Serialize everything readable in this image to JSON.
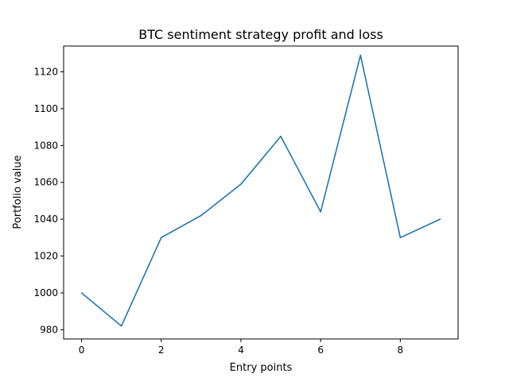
{
  "chart_data": {
    "type": "line",
    "title": "BTC sentiment strategy profit and loss",
    "xlabel": "Entry points",
    "ylabel": "Portfolio value",
    "x": [
      0,
      1,
      2,
      3,
      4,
      5,
      6,
      7,
      8,
      9
    ],
    "series": [
      {
        "color": "#1f77b4",
        "values": [
          1000,
          982,
          1030,
          1042,
          1059,
          1085,
          1044,
          1129,
          1030,
          1040
        ]
      }
    ],
    "xlim": [
      -0.45,
      9.45
    ],
    "ylim": [
      975,
      1134
    ],
    "xticks": [
      0,
      2,
      4,
      6,
      8
    ],
    "xtick_labels": [
      "0",
      "2",
      "4",
      "6",
      "8"
    ],
    "yticks": [
      980,
      1000,
      1020,
      1040,
      1060,
      1080,
      1100,
      1120
    ],
    "ytick_labels": [
      "980",
      "1000",
      "1020",
      "1040",
      "1060",
      "1080",
      "1100",
      "1120"
    ],
    "grid": false,
    "legend": "none"
  }
}
